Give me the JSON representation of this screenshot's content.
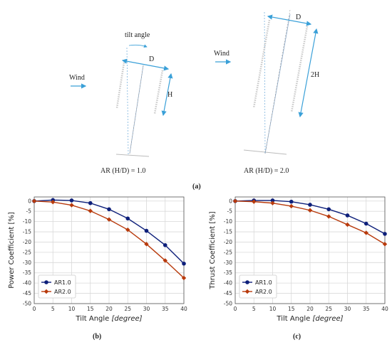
{
  "diagram": {
    "panel_a": {
      "tilt_label": "tilt angle",
      "wind_label": "Wind",
      "d_label": "D",
      "h_label": "H",
      "ar_label": "AR (H/D) = 1.0"
    },
    "panel_a2": {
      "wind_label": "Wind",
      "d_label": "D",
      "h_label": "2H",
      "ar_label": "AR (H/D) = 2.0"
    },
    "caption_a": "(a)",
    "colors": {
      "arrow": "#3aa0d8",
      "blade": "#c8c8c8"
    }
  },
  "chart_data": [
    {
      "type": "line",
      "caption": "(b)",
      "xlabel_prefix": "Tilt Angle ",
      "xlabel_unit": "[degree]",
      "ylabel": "Power Coefficient [%]",
      "x": [
        0,
        5,
        10,
        15,
        20,
        25,
        30,
        35,
        40
      ],
      "xticks": [
        0,
        5,
        10,
        15,
        20,
        25,
        30,
        35,
        40
      ],
      "yticks": [
        0,
        -5,
        -10,
        -15,
        -20,
        -25,
        -30,
        -35,
        -40,
        -45,
        -50
      ],
      "xlim": [
        0,
        40
      ],
      "ylim": [
        -50,
        2
      ],
      "grid": true,
      "legend_position": "bottom-left",
      "series": [
        {
          "name": "AR1.0",
          "color": "#0d1f7a",
          "marker": "circle",
          "values": [
            0,
            0.5,
            0.3,
            -1.0,
            -4.0,
            -8.5,
            -14.5,
            -21.5,
            -30.5
          ]
        },
        {
          "name": "AR2.0",
          "color": "#b83a0c",
          "marker": "diamond",
          "values": [
            0,
            -0.5,
            -2.0,
            -4.8,
            -9.0,
            -14.0,
            -21.0,
            -29.0,
            -37.5
          ]
        }
      ]
    },
    {
      "type": "line",
      "caption": "(c)",
      "xlabel_prefix": "Tilt Angle ",
      "xlabel_unit": "[degree]",
      "ylabel": "Thrust Coefficient [%]",
      "x": [
        0,
        5,
        10,
        15,
        20,
        25,
        30,
        35,
        40
      ],
      "xticks": [
        0,
        5,
        10,
        15,
        20,
        25,
        30,
        35,
        40
      ],
      "yticks": [
        0,
        -5,
        -10,
        -15,
        -20,
        -25,
        -30,
        -35,
        -40,
        -45,
        -50
      ],
      "xlim": [
        0,
        40
      ],
      "ylim": [
        -50,
        2
      ],
      "grid": true,
      "legend_position": "bottom-left",
      "series": [
        {
          "name": "AR1.0",
          "color": "#0d1f7a",
          "marker": "circle",
          "values": [
            0,
            0.3,
            0.3,
            -0.3,
            -1.8,
            -4.0,
            -7.0,
            -11.0,
            -16.0
          ]
        },
        {
          "name": "AR2.0",
          "color": "#b83a0c",
          "marker": "diamond",
          "values": [
            0,
            -0.3,
            -1.0,
            -2.5,
            -4.5,
            -7.5,
            -11.5,
            -15.5,
            -21.0
          ]
        }
      ]
    }
  ]
}
